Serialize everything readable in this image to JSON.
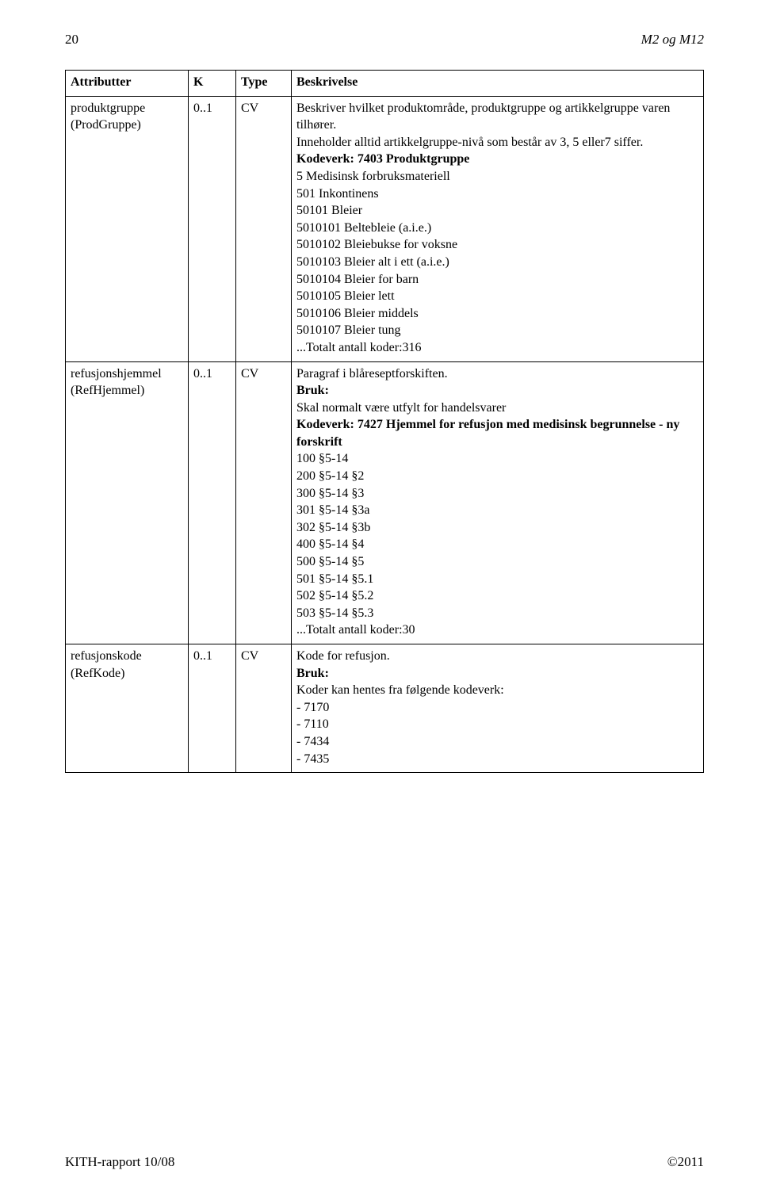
{
  "header": {
    "page_number": "20",
    "doc_title": "M2 og M12"
  },
  "table": {
    "columns": [
      "Attributter",
      "K",
      "Type",
      "Beskrivelse"
    ],
    "rows": [
      {
        "attr_line1": "produktgruppe",
        "attr_line2": "(ProdGruppe)",
        "k": "0..1",
        "type": "CV",
        "desc": {
          "intro1": "Beskriver hvilket produktområde, produktgruppe og artikkelgruppe varen tilhører.",
          "intro2": "Inneholder alltid artikkelgruppe-nivå som består av 3, 5 eller7 siffer.",
          "kodeverk_label": "Kodeverk: 7403 Produktgruppe",
          "lines": [
            "5 Medisinsk forbruksmateriell",
            "501 Inkontinens",
            "50101 Bleier",
            "5010101 Beltebleie (a.i.e.)",
            "5010102 Bleiebukse for voksne",
            "5010103 Bleier alt i ett (a.i.e.)",
            "5010104 Bleier for barn",
            "5010105 Bleier lett",
            "5010106 Bleier middels",
            "5010107 Bleier tung",
            "...Totalt antall koder:316"
          ]
        }
      },
      {
        "attr_line1": "refusjonshjemmel",
        "attr_line2": "(RefHjemmel)",
        "k": "0..1",
        "type": "CV",
        "desc": {
          "intro1": "Paragraf i blåreseptforskiften.",
          "bruk_label": "Bruk:",
          "bruk_text": "Skal normalt være utfylt for handelsvarer",
          "kodeverk_label": "Kodeverk: 7427 Hjemmel for refusjon med medisinsk begrunnelse - ny forskrift",
          "lines": [
            "100 §5-14",
            "200 §5-14 §2",
            "300 §5-14 §3",
            "301 §5-14 §3a",
            "302 §5-14 §3b",
            "400 §5-14 §4",
            "500 §5-14 §5",
            "501 §5-14 §5.1",
            "502 §5-14 §5.2",
            "503 §5-14 §5.3",
            "...Totalt antall koder:30"
          ]
        }
      },
      {
        "attr_line1": "refusjonskode",
        "attr_line2": "(RefKode)",
        "k": "0..1",
        "type": "CV",
        "desc": {
          "intro1": "Kode for refusjon.",
          "bruk_label": "Bruk:",
          "bruk_text": " Koder kan hentes fra følgende kodeverk:",
          "lines": [
            "- 7170",
            "- 7110",
            "- 7434",
            "- 7435"
          ]
        }
      }
    ]
  },
  "footer": {
    "left": "KITH-rapport 10/08",
    "right": "©2011"
  }
}
